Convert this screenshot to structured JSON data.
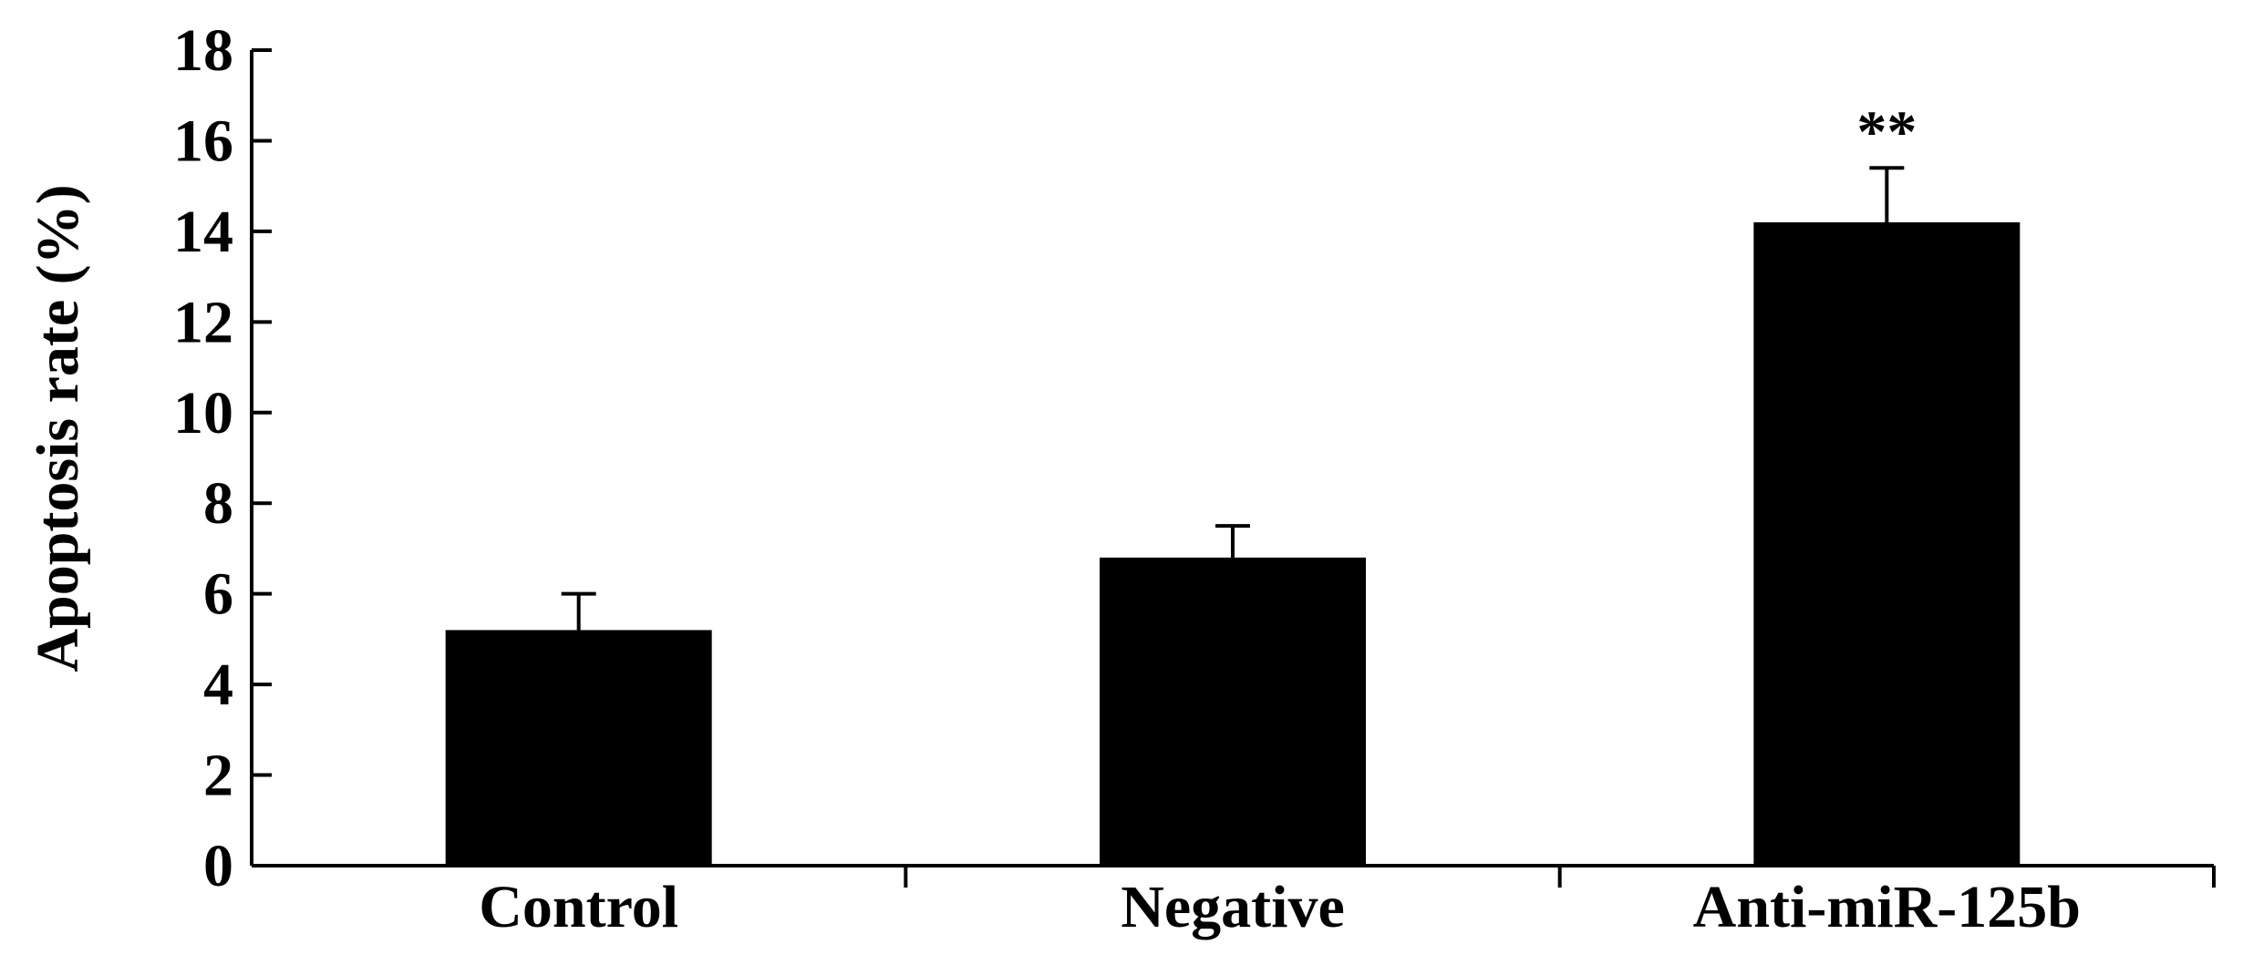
{
  "chart_data": {
    "type": "bar",
    "title": "",
    "xlabel": "",
    "ylabel": "Apoptosis rate (%)",
    "ylim": [
      0,
      18
    ],
    "yticks": [
      0,
      2,
      4,
      6,
      8,
      10,
      12,
      14,
      16,
      18
    ],
    "categories": [
      "Control",
      "Negative",
      "Anti-miR-125b"
    ],
    "series": [
      {
        "values": [
          5.2,
          6.8,
          14.2
        ],
        "error": [
          0.8,
          0.7,
          1.2
        ],
        "color": "#000000"
      }
    ],
    "annotations": [
      {
        "category": "Anti-miR-125b",
        "text": "**"
      }
    ],
    "grid": false,
    "legend": "none"
  }
}
